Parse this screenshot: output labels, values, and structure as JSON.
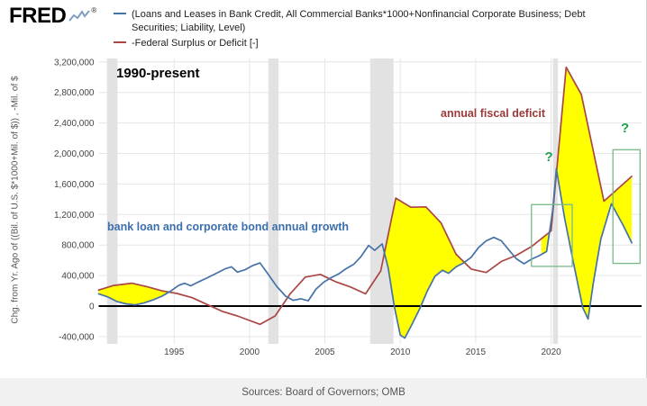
{
  "header": {
    "logo_text": "FRED",
    "logo_reg": "®",
    "legend": [
      {
        "color": "#4572a7",
        "label": "(Loans and Leases in Bank Credit, All Commercial Banks*1000+Nonfinancial Corporate Business; Debt Securities; Liability, Level)"
      },
      {
        "color": "#aa4643",
        "label": "-Federal Surplus or Deficit [-]"
      }
    ]
  },
  "annotations": {
    "title": "1990-present",
    "deficit_label": "annual fiscal deficit",
    "deficit_color": "#9c3a3a",
    "credit_label": "bank loan and corporate bond annual growth",
    "credit_color": "#3c6fad",
    "question_mark": "?"
  },
  "footer": {
    "sources": "Sources: Board of Governors; OMB"
  },
  "chart_data": {
    "type": "line",
    "title": "1990-present",
    "xlabel": "",
    "ylabel": "Chg. from Yr. Ago of ((Bil. of U.S. $*1000+Mil. of $)) , -Mil. of $",
    "units": "Mil. of $",
    "xlim": [
      1990,
      2026
    ],
    "ylim": [
      -500000,
      3250000
    ],
    "grid": true,
    "legend_position": "top",
    "x_ticks": [
      {
        "v": 1995,
        "label": "1995"
      },
      {
        "v": 2000,
        "label": "2000"
      },
      {
        "v": 2005,
        "label": "2005"
      },
      {
        "v": 2010,
        "label": "2010"
      },
      {
        "v": 2015,
        "label": "2015"
      },
      {
        "v": 2020,
        "label": "2020"
      }
    ],
    "y_ticks": [
      {
        "v": -400000,
        "label": "-400,000"
      },
      {
        "v": 0,
        "label": "0"
      },
      {
        "v": 400000,
        "label": "400,000"
      },
      {
        "v": 800000,
        "label": "800,000"
      },
      {
        "v": 1200000,
        "label": "1,200,000"
      },
      {
        "v": 1600000,
        "label": "1,600,000"
      },
      {
        "v": 2000000,
        "label": "2,000,000"
      },
      {
        "v": 2400000,
        "label": "2,400,000"
      },
      {
        "v": 2800000,
        "label": "2,800,000"
      },
      {
        "v": 3200000,
        "label": "3,200,000"
      }
    ],
    "series": [
      {
        "name": "Bank loans and leases + nonfinancial corporate debt securities, chg. from yr. ago",
        "color": "#4572a7",
        "points": [
          [
            1990.0,
            160000
          ],
          [
            1990.6,
            120000
          ],
          [
            1991.2,
            60000
          ],
          [
            1991.8,
            30000
          ],
          [
            1992.4,
            15000
          ],
          [
            1993.0,
            40000
          ],
          [
            1993.6,
            80000
          ],
          [
            1994.2,
            130000
          ],
          [
            1994.8,
            200000
          ],
          [
            1995.3,
            270000
          ],
          [
            1995.7,
            300000
          ],
          [
            1996.1,
            265000
          ],
          [
            1996.6,
            315000
          ],
          [
            1997.2,
            370000
          ],
          [
            1997.8,
            430000
          ],
          [
            1998.4,
            490000
          ],
          [
            1998.8,
            515000
          ],
          [
            1999.2,
            445000
          ],
          [
            1999.7,
            475000
          ],
          [
            2000.2,
            530000
          ],
          [
            2000.7,
            565000
          ],
          [
            2001.2,
            430000
          ],
          [
            2001.8,
            260000
          ],
          [
            2002.4,
            130000
          ],
          [
            2002.9,
            75000
          ],
          [
            2003.4,
            95000
          ],
          [
            2003.9,
            70000
          ],
          [
            2004.4,
            220000
          ],
          [
            2004.9,
            310000
          ],
          [
            2005.4,
            370000
          ],
          [
            2005.9,
            420000
          ],
          [
            2006.4,
            490000
          ],
          [
            2006.9,
            545000
          ],
          [
            2007.4,
            650000
          ],
          [
            2007.9,
            795000
          ],
          [
            2008.3,
            730000
          ],
          [
            2008.8,
            815000
          ],
          [
            2009.2,
            500000
          ],
          [
            2009.6,
            0
          ],
          [
            2010.0,
            -380000
          ],
          [
            2010.3,
            -420000
          ],
          [
            2010.8,
            -230000
          ],
          [
            2011.3,
            -30000
          ],
          [
            2011.8,
            200000
          ],
          [
            2012.3,
            390000
          ],
          [
            2012.8,
            470000
          ],
          [
            2013.2,
            430000
          ],
          [
            2013.7,
            515000
          ],
          [
            2014.2,
            565000
          ],
          [
            2014.7,
            640000
          ],
          [
            2015.2,
            770000
          ],
          [
            2015.7,
            855000
          ],
          [
            2016.2,
            900000
          ],
          [
            2016.7,
            855000
          ],
          [
            2017.2,
            735000
          ],
          [
            2017.7,
            620000
          ],
          [
            2018.2,
            555000
          ],
          [
            2018.7,
            615000
          ],
          [
            2019.2,
            660000
          ],
          [
            2019.7,
            715000
          ],
          [
            2020.1,
            1250000
          ],
          [
            2020.35,
            1800000
          ],
          [
            2020.9,
            1150000
          ],
          [
            2021.5,
            550000
          ],
          [
            2022.1,
            -20000
          ],
          [
            2022.45,
            -170000
          ],
          [
            2022.8,
            300000
          ],
          [
            2023.3,
            880000
          ],
          [
            2024.0,
            1340000
          ],
          [
            2024.8,
            1050000
          ],
          [
            2025.35,
            830000
          ]
        ]
      },
      {
        "name": "-Federal Surplus or Deficit",
        "color": "#aa4643",
        "points": [
          [
            1990.0,
            210000
          ],
          [
            1991.0,
            270000
          ],
          [
            1992.2,
            300000
          ],
          [
            1993.2,
            255000
          ],
          [
            1994.2,
            200000
          ],
          [
            1995.2,
            165000
          ],
          [
            1996.2,
            110000
          ],
          [
            1997.2,
            20000
          ],
          [
            1998.2,
            -70000
          ],
          [
            1999.2,
            -130000
          ],
          [
            2000.7,
            -240000
          ],
          [
            2001.7,
            -130000
          ],
          [
            2002.7,
            160000
          ],
          [
            2003.7,
            380000
          ],
          [
            2004.7,
            415000
          ],
          [
            2005.7,
            320000
          ],
          [
            2006.7,
            250000
          ],
          [
            2007.7,
            160000
          ],
          [
            2008.7,
            460000
          ],
          [
            2009.7,
            1415000
          ],
          [
            2010.7,
            1295000
          ],
          [
            2011.7,
            1300000
          ],
          [
            2012.7,
            1090000
          ],
          [
            2013.7,
            680000
          ],
          [
            2014.7,
            485000
          ],
          [
            2015.7,
            440000
          ],
          [
            2016.7,
            585000
          ],
          [
            2017.7,
            665000
          ],
          [
            2018.7,
            780000
          ],
          [
            2020.0,
            985000
          ],
          [
            2021.0,
            3130000
          ],
          [
            2022.0,
            2775000
          ],
          [
            2023.5,
            1375000
          ],
          [
            2025.35,
            1700000
          ]
        ]
      }
    ],
    "fill_between": {
      "color": "#ffff00",
      "upper": "-Federal Surplus or Deficit",
      "lower": "Bank loans + corporate bonds growth",
      "windows": [
        [
          1990.0,
          1995.2
        ],
        [
          2008.85,
          2014.4
        ],
        [
          2019.35,
          2025.35
        ]
      ]
    },
    "recessions": [
      [
        1990.55,
        1991.25
      ],
      [
        2001.25,
        2001.92
      ],
      [
        2008.0,
        2009.55
      ],
      [
        2020.12,
        2020.45
      ]
    ],
    "green_boxes": [
      {
        "x0": 2018.7,
        "x1": 2021.4,
        "y0": 520000,
        "y1": 1330000
      },
      {
        "x0": 2024.1,
        "x1": 2025.9,
        "y0": 560000,
        "y1": 2050000
      }
    ],
    "question_marks": [
      {
        "x": 2019.85,
        "y": 1900000,
        "text": "?"
      },
      {
        "x": 2024.9,
        "y": 2280000,
        "text": "?"
      }
    ],
    "colors": {
      "grid": "#e6e6e6",
      "recession": "#e2e2e2",
      "zero_line": "#000000",
      "tick_text": "#444444",
      "green_box": "#79b989",
      "green_mark": "#1fa24a"
    }
  }
}
